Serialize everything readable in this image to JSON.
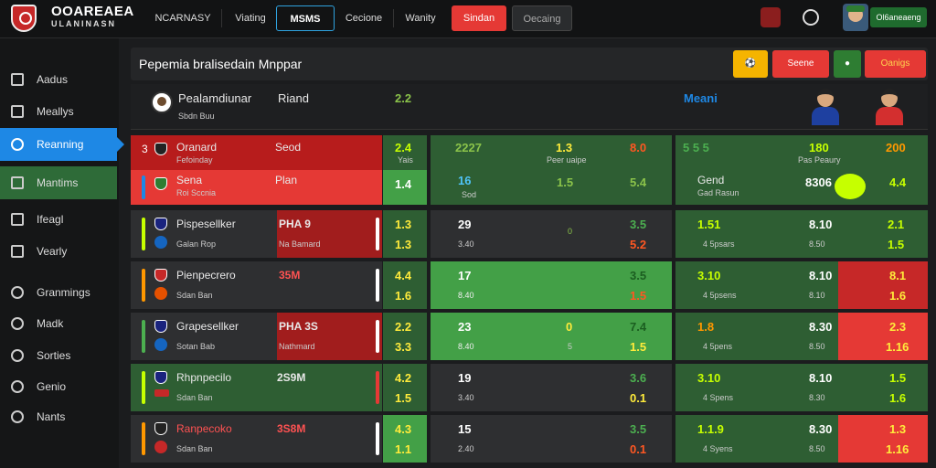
{
  "brand": {
    "title": "OOAREAEA",
    "subtitle": "ULANINASN"
  },
  "nav": [
    {
      "label": "NCARNASY"
    },
    {
      "label": "Viating"
    },
    {
      "label": "MSMS"
    },
    {
      "label": "Cecione"
    },
    {
      "label": "Wanity"
    },
    {
      "label": "Sindan"
    },
    {
      "label": "Oecaing"
    }
  ],
  "account": {
    "label": "Ol6aneaeng"
  },
  "sidebar": [
    {
      "label": "Aadus",
      "icon": "monitor-icon"
    },
    {
      "label": "Meallys",
      "icon": "chart-icon"
    },
    {
      "label": "Reanning",
      "icon": "globe-icon"
    },
    {
      "label": "Mantims",
      "icon": "puzzle-icon"
    },
    {
      "label": "Ifeagl",
      "icon": "wrench-icon"
    },
    {
      "label": "Vearly",
      "icon": "trend-icon"
    },
    {
      "label": "Granmings",
      "icon": "circle-icon"
    },
    {
      "label": "Madk",
      "icon": "circle-icon"
    },
    {
      "label": "Sorties",
      "icon": "circle-icon"
    },
    {
      "label": "Genio",
      "icon": "check-icon"
    },
    {
      "label": "Nants",
      "icon": "circle-icon"
    }
  ],
  "header": {
    "title": "Pepemia bralisedain Mnppar",
    "btn_icon": "⚽",
    "btn_scene": "Seene",
    "btn_circle": "●",
    "btn_orange": "Oanigs"
  },
  "match": {
    "name": "Pealamdiunar",
    "sub": "Sbdn Buu",
    "result": "Riand",
    "score": "2.2",
    "label": "Meani"
  },
  "rows": [
    {
      "rank": "3",
      "team": "Oranard",
      "team_sub": "Fefoinday",
      "mid": "Seod",
      "mid_sub": "",
      "odd1": "2.4",
      "odd1_sub": "Yais",
      "c2a": "2227",
      "c2b": "1.3",
      "c2b_sub": "Peer uaipe",
      "c2c": "8.0",
      "c3a": "5 5 5",
      "c3b": "180",
      "c3b_sub": "Pas Peaury",
      "c3c": "200",
      "c3_sub": ""
    },
    {
      "rank": "",
      "team": "Sena",
      "team_sub": "Roi Sccnia",
      "mid": "Plan",
      "mid_sub": "",
      "odd1": "1.4",
      "odd1_sub": "",
      "c2a": "16",
      "c2a_sub": "Sod",
      "c2b": "1.5",
      "c2c": "5.4",
      "c3a": "Gend",
      "c3a_sub": "Gad Rasun",
      "c3b": "8306",
      "c3c": "4.4"
    },
    {
      "rank": "",
      "team": "Pispesellker",
      "team_sub": "Galan Rop",
      "mid": "PHA 9",
      "mid_sub": "Na Bamard",
      "odd1": "1.3",
      "odd1_sub": "1.3",
      "c2a": "29",
      "c2a_sub": "3.40",
      "c2b": "0",
      "c2c": "3.5",
      "c2c_sub": "5.2",
      "c3a": "1.51",
      "c3a_sub": "4 5psars",
      "c3b": "8.10",
      "c3b_sub": "8.50",
      "c3c": "2.1",
      "c3c_sub": "1.5"
    },
    {
      "rank": "",
      "team": "Pienpecrero",
      "team_sub": "Sdan Ban",
      "mid": "35M",
      "mid_sub": "",
      "odd1": "4.4",
      "odd1_sub": "1.6",
      "c2a": "17",
      "c2a_sub": "8.40",
      "c2b": "",
      "c2c": "3.5",
      "c2c_sub": "1.5",
      "c3a": "3.10",
      "c3a_sub": "4 5psens",
      "c3b": "8.10",
      "c3b_sub": "8.10",
      "c3c": "8.1",
      "c3c_sub": "1.6"
    },
    {
      "rank": "",
      "team": "Grapesellker",
      "team_sub": "Sotan Bab",
      "mid": "PHA 3S",
      "mid_sub": "Nathmard",
      "odd1": "2.2",
      "odd1_sub": "3.3",
      "c2a": "23",
      "c2a_sub": "8.40",
      "c2b": "0",
      "c2b_sub": "5",
      "c2c": "7.4",
      "c2c_sub": "1.5",
      "c3a": "1.8",
      "c3a_sub": "4 5pens",
      "c3b": "8.30",
      "c3b_sub": "8.50",
      "c3c": "2.3",
      "c3c_sub": "1.16"
    },
    {
      "rank": "",
      "team": "Rhpnpecilo",
      "team_sub": "Sdan Ban",
      "mid": "2S9M",
      "mid_sub": "",
      "odd1": "4.2",
      "odd1_sub": "1.5",
      "c2a": "19",
      "c2a_sub": "3.40",
      "c2b": "",
      "c2c": "3.6",
      "c2c_sub": "0.1",
      "c3a": "3.10",
      "c3a_sub": "4 Spens",
      "c3b": "8.10",
      "c3b_sub": "8.30",
      "c3c": "1.5",
      "c3c_sub": "1.6"
    },
    {
      "rank": "",
      "team": "Ranpecoko",
      "team_sub": "Sdan Ban",
      "mid": "3S8M",
      "mid_sub": "",
      "odd1": "4.3",
      "odd1_sub": "1.1",
      "c2a": "15",
      "c2a_sub": "2.40",
      "c2b": "",
      "c2c": "3.5",
      "c2c_sub": "0.1",
      "c3a": "1.1.9",
      "c3a_sub": "4 Syens",
      "c3b": "8.30",
      "c3b_sub": "8.50",
      "c3c": "1.3",
      "c3c_sub": "1.16"
    }
  ],
  "colors": {
    "green": "#43a047",
    "red": "#e53935",
    "blue": "#1e88e5",
    "yellow": "#c6ff00",
    "orange": "#ff9800"
  }
}
